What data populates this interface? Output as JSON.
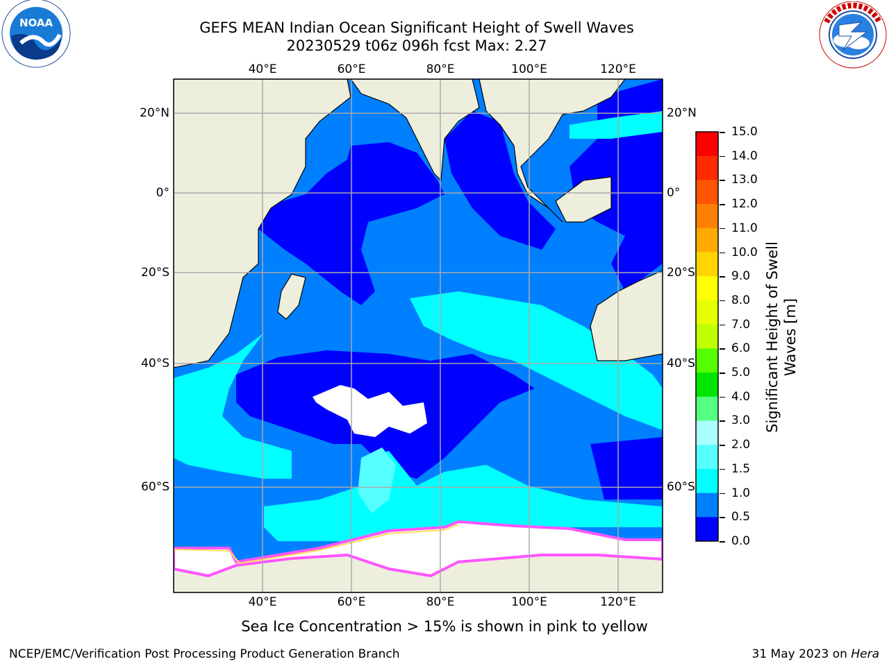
{
  "title": {
    "line1": "GEFS MEAN Indian Ocean Significant Height of Swell Waves",
    "line2": "20230529 t06z 096h fcst   Max: 2.27"
  },
  "logos": {
    "left": {
      "name": "noaa-logo",
      "text": "NOAA",
      "ring_text": "NATIONAL OCEANIC AND ATMOSPHERIC ADMINISTRATION · U.S. DEPARTMENT OF COMMERCE"
    },
    "right": {
      "name": "nws-logo",
      "ring_text": "NATIONAL WEATHER SERVICE"
    }
  },
  "map": {
    "lon_range": [
      20,
      130
    ],
    "lat_range": [
      -71,
      28
    ],
    "lon_ticks": [
      {
        "value": 40,
        "label": "40°E"
      },
      {
        "value": 60,
        "label": "60°E"
      },
      {
        "value": 80,
        "label": "80°E"
      },
      {
        "value": 100,
        "label": "100°E"
      },
      {
        "value": 120,
        "label": "120°E"
      }
    ],
    "lat_ticks": [
      {
        "value": 20,
        "label": "20°N"
      },
      {
        "value": 0,
        "label": "0°"
      },
      {
        "value": -20,
        "label": "20°S"
      },
      {
        "value": -40,
        "label": "40°S"
      },
      {
        "value": -60,
        "label": "60°S"
      }
    ],
    "grid": true,
    "colors": {
      "land": "#eeeedd",
      "ocean_0_0.5": "#0000ff",
      "ocean_0.5_1.0": "#0080ff",
      "ocean_1.0_1.5": "#00ffff",
      "ocean_1.5_2.0": "#40ffff",
      "ice_white": "#ffffff",
      "ice_pink": "#ff55ff",
      "ice_yellow": "#ffdd55"
    }
  },
  "colorbar": {
    "title_line1": "Significant Height of Swell",
    "title_line2": "Waves [m]",
    "labels": [
      "15.0",
      "14.0",
      "13.0",
      "12.0",
      "11.0",
      "10.0",
      "9.0",
      "8.0",
      "7.0",
      "6.0",
      "5.0",
      "4.0",
      "3.0",
      "2.0",
      "1.5",
      "1.0",
      "0.5",
      "0.0"
    ],
    "bins": [
      {
        "from": 14.0,
        "to": 15.0,
        "color": "#ff0000"
      },
      {
        "from": 13.0,
        "to": 14.0,
        "color": "#ff2a00"
      },
      {
        "from": 12.0,
        "to": 13.0,
        "color": "#ff5500"
      },
      {
        "from": 11.0,
        "to": 12.0,
        "color": "#ff8000"
      },
      {
        "from": 10.0,
        "to": 11.0,
        "color": "#ffaa00"
      },
      {
        "from": 9.0,
        "to": 10.0,
        "color": "#ffd500"
      },
      {
        "from": 8.0,
        "to": 9.0,
        "color": "#ffff00"
      },
      {
        "from": 7.0,
        "to": 8.0,
        "color": "#e6ff00"
      },
      {
        "from": 6.0,
        "to": 7.0,
        "color": "#c0ff00"
      },
      {
        "from": 5.0,
        "to": 6.0,
        "color": "#55ff00"
      },
      {
        "from": 4.0,
        "to": 5.0,
        "color": "#00e600"
      },
      {
        "from": 3.0,
        "to": 4.0,
        "color": "#55ff80"
      },
      {
        "from": 2.0,
        "to": 3.0,
        "color": "#aaffff"
      },
      {
        "from": 1.5,
        "to": 2.0,
        "color": "#55ffff"
      },
      {
        "from": 1.0,
        "to": 1.5,
        "color": "#00ffff"
      },
      {
        "from": 0.5,
        "to": 1.0,
        "color": "#0080ff"
      },
      {
        "from": 0.0,
        "to": 0.5,
        "color": "#0000ff"
      }
    ]
  },
  "caption": "Sea Ice Concentration > 15% is shown in pink to yellow",
  "footer": {
    "left": "NCEP/EMC/Verification Post Processing Product Generation Branch",
    "right_prefix": "31 May 2023 on ",
    "right_machine": "Hera"
  }
}
